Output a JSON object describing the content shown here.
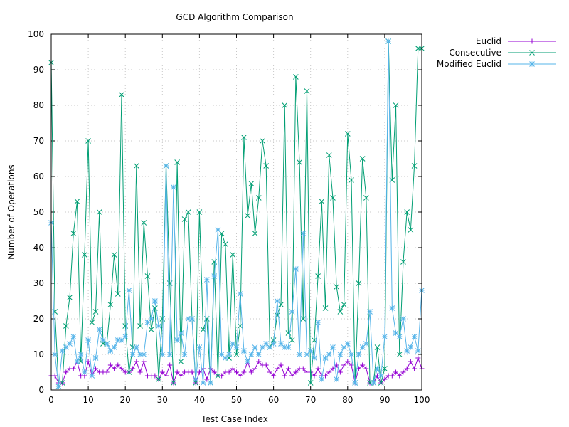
{
  "chart_data": {
    "type": "line",
    "title": "GCD Algorithm Comparison",
    "xlabel": "Test Case Index",
    "ylabel": "Number of Operations",
    "xlim": [
      0,
      100
    ],
    "ylim": [
      0,
      100
    ],
    "xticks": [
      "0",
      "10",
      "20",
      "30",
      "40",
      "50",
      "60",
      "70",
      "80",
      "90",
      "100"
    ],
    "yticks": [
      "0",
      "10",
      "20",
      "30",
      "40",
      "50",
      "60",
      "70",
      "80",
      "90",
      "100"
    ],
    "grid": true,
    "legend_position": "top-right-outside",
    "series": [
      {
        "name": "Euclid",
        "color": "#9400d3",
        "marker": "plus",
        "values": [
          4,
          4,
          2,
          2,
          5,
          6,
          6,
          8,
          4,
          4,
          8,
          4,
          6,
          5,
          5,
          5,
          7,
          6,
          7,
          6,
          5,
          5,
          6,
          8,
          5,
          8,
          4,
          4,
          4,
          3,
          5,
          4,
          7,
          2,
          5,
          4,
          5,
          5,
          5,
          2,
          5,
          6,
          3,
          6,
          5,
          4,
          4,
          5,
          5,
          6,
          5,
          4,
          5,
          8,
          5,
          6,
          8,
          7,
          7,
          5,
          4,
          6,
          7,
          4,
          6,
          4,
          5,
          6,
          6,
          5,
          5,
          4,
          6,
          4,
          4,
          5,
          6,
          7,
          5,
          7,
          8,
          7,
          2,
          6,
          7,
          6,
          2,
          2,
          4,
          2,
          3,
          4,
          4,
          5,
          4,
          5,
          6,
          8,
          6,
          9,
          6
        ]
      },
      {
        "name": "Consecutive",
        "color": "#009e73",
        "marker": "cross",
        "values": [
          92,
          22,
          1,
          2,
          18,
          26,
          44,
          53,
          8,
          38,
          70,
          19,
          22,
          50,
          13,
          13,
          24,
          38,
          27,
          83,
          18,
          5,
          12,
          63,
          18,
          47,
          32,
          17,
          23,
          3,
          20,
          63,
          30,
          2,
          64,
          8,
          48,
          50,
          20,
          2,
          50,
          17,
          20,
          2,
          36,
          4,
          44,
          41,
          9,
          38,
          10,
          18,
          71,
          49,
          58,
          44,
          54,
          70,
          63,
          12,
          14,
          21,
          24,
          80,
          16,
          14,
          88,
          64,
          20,
          84,
          2,
          14,
          32,
          53,
          23,
          66,
          54,
          29,
          22,
          24,
          72,
          59,
          2,
          30,
          65,
          54,
          2,
          2,
          12,
          2,
          6,
          98,
          59,
          80,
          10,
          36,
          50,
          45,
          63,
          96,
          96
        ]
      },
      {
        "name": "Modified Euclid",
        "color": "#56b4e9",
        "marker": "star",
        "values": [
          47,
          10,
          1,
          11,
          12,
          13,
          15,
          8,
          10,
          5,
          14,
          4,
          9,
          17,
          14,
          13,
          11,
          12,
          14,
          14,
          15,
          28,
          10,
          12,
          10,
          10,
          19,
          20,
          25,
          18,
          10,
          63,
          10,
          57,
          14,
          16,
          10,
          20,
          20,
          3,
          12,
          2,
          31,
          2,
          32,
          45,
          10,
          9,
          10,
          13,
          12,
          27,
          11,
          8,
          10,
          12,
          10,
          12,
          13,
          12,
          13,
          25,
          13,
          12,
          12,
          22,
          34,
          10,
          44,
          10,
          11,
          9,
          19,
          3,
          9,
          10,
          12,
          3,
          10,
          12,
          13,
          10,
          2,
          10,
          12,
          13,
          22,
          2,
          6,
          4,
          15,
          98,
          23,
          16,
          15,
          20,
          11,
          12,
          15,
          11,
          28
        ]
      }
    ]
  }
}
